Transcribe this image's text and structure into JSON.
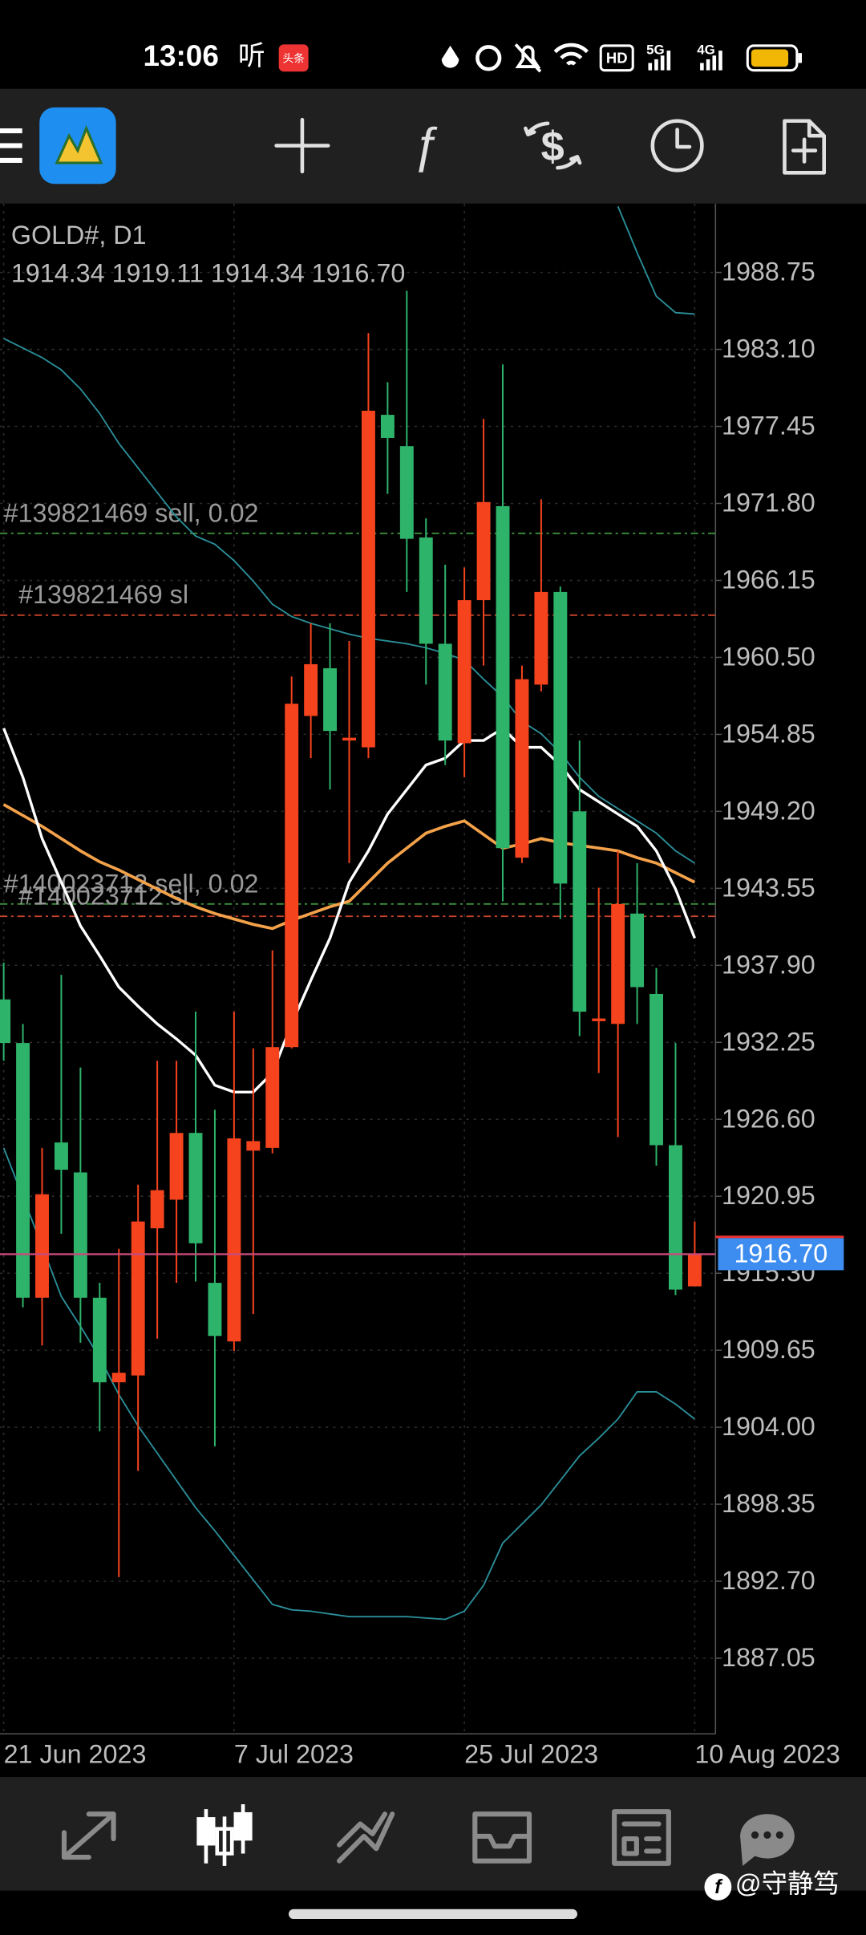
{
  "status_bar": {
    "time": "13:06",
    "listen": "听",
    "news": "头条",
    "hd": "HD",
    "net1": "5G",
    "net2": "4G"
  },
  "chart_data": {
    "type": "candlestick",
    "symbol": "GOLD#, D1",
    "ohlc_text": "1914.34 1919.11 1914.34 1916.70",
    "categories": [
      "21 Jun 2023",
      null,
      null,
      null,
      null,
      null,
      null,
      null,
      null,
      null,
      null,
      null,
      "7 Jul 2023",
      null,
      null,
      null,
      null,
      null,
      null,
      null,
      null,
      null,
      null,
      null,
      "25 Jul 2023",
      null,
      null,
      null,
      null,
      null,
      null,
      null,
      null,
      null,
      null,
      null,
      "10 Aug 2023"
    ],
    "open": [
      1935.4,
      1932.2,
      1913.5,
      1924.9,
      1922.7,
      1913.5,
      1907.3,
      1907.8,
      1918.6,
      1920.7,
      1925.6,
      1914.6,
      1910.3,
      1924.3,
      1924.5,
      1931.9,
      1956.2,
      1959.7,
      1954.4,
      1953.9,
      1978.3,
      1976.0,
      1969.3,
      1961.5,
      1954.2,
      1964.7,
      1971.6,
      1945.8,
      1958.5,
      1965.3,
      1949.2,
      1933.8,
      1933.6,
      1941.7,
      1935.8,
      1924.7,
      1914.34
    ],
    "high": [
      1938.1,
      1933.6,
      1924.5,
      1937.2,
      1930.4,
      1914.6,
      1917.1,
      1921.8,
      1930.9,
      1930.9,
      1934.5,
      1927.3,
      1934.5,
      1931.8,
      1939.0,
      1959.1,
      1963.0,
      1963.0,
      1961.7,
      1984.3,
      1980.7,
      1987.4,
      1970.7,
      1967.3,
      1967.1,
      1978.0,
      1982.0,
      1959.9,
      1972.1,
      1965.7,
      1954.4,
      1943.6,
      1946.3,
      1945.4,
      1937.7,
      1932.2,
      1919.11
    ],
    "low": [
      1930.9,
      1912.8,
      1910.0,
      1918.2,
      1910.2,
      1903.7,
      1893.0,
      1900.8,
      1910.5,
      1914.6,
      1914.7,
      1902.6,
      1909.6,
      1912.3,
      1924.1,
      1931.8,
      1953.1,
      1950.8,
      1945.4,
      1953.1,
      1972.5,
      1965.3,
      1958.5,
      1952.6,
      1951.7,
      1959.9,
      1942.6,
      1945.4,
      1958.0,
      1941.3,
      1932.7,
      1930.0,
      1925.3,
      1933.6,
      1923.2,
      1913.7,
      1914.34
    ],
    "close": [
      1932.2,
      1913.5,
      1921.1,
      1922.9,
      1913.5,
      1907.3,
      1908.0,
      1919.1,
      1921.4,
      1925.6,
      1917.5,
      1910.7,
      1925.2,
      1925.0,
      1931.9,
      1957.1,
      1960.0,
      1955.1,
      1954.6,
      1978.6,
      1976.6,
      1969.2,
      1961.5,
      1954.4,
      1964.7,
      1971.9,
      1946.5,
      1958.9,
      1965.3,
      1943.9,
      1934.5,
      1934.0,
      1942.4,
      1936.3,
      1924.7,
      1914.1,
      1916.7
    ],
    "up_color": "#f5431d",
    "down_color": "#2eb36b",
    "ylim": [
      1881.5,
      1993.8
    ],
    "yticks": [
      1988.75,
      {
        "value": 1983.1,
        "label": "1983.10"
      },
      1977.45,
      {
        "value": 1971.8,
        "label": "1971.80"
      },
      1966.15,
      {
        "value": 1960.5,
        "label": "1960.50"
      },
      1954.85,
      {
        "value": 1949.2,
        "label": "1949.20"
      },
      1943.55,
      {
        "value": 1937.9,
        "label": "1937.90"
      },
      1932.25,
      {
        "value": 1926.6,
        "label": "1926.60"
      },
      1920.95,
      {
        "value": 1915.3,
        "label": "1915.30"
      },
      1909.65,
      {
        "value": 1904.0,
        "label": "1904.00"
      },
      1898.35,
      {
        "value": 1892.7,
        "label": "1892.70"
      },
      1887.05
    ],
    "grid": true,
    "overlays": [
      {
        "color": "#2b8f9a",
        "width": 1.2,
        "values": [
          1924.5,
          1920.9,
          1917.3,
          1913.6,
          1911.4,
          1909.1,
          1906.4,
          1904.1,
          1902.1,
          1900.1,
          1898.1,
          1896.4,
          1894.6,
          1892.8,
          1891.0,
          1890.6,
          1890.5,
          1890.3,
          1890.1,
          1890.1,
          1890.1,
          1890.1,
          1890.0,
          1889.9,
          1890.5,
          1892.4,
          1895.5,
          1896.9,
          1898.3,
          1900.1,
          1901.9,
          1903.2,
          1904.6,
          1906.6,
          1906.6,
          1905.7,
          1904.6
        ]
      },
      {
        "color": "#2b8f9a",
        "width": 1.2,
        "values": [
          1983.9,
          1983.2,
          1982.5,
          1981.6,
          1980.2,
          1978.4,
          1976.2,
          1974.4,
          1972.6,
          1970.8,
          1969.4,
          1968.8,
          1967.6,
          1966.1,
          1964.4,
          1963.5,
          1963.0,
          1962.6,
          1962.2,
          1961.9,
          1961.7,
          1961.5,
          1961.2,
          1960.8,
          1960.3,
          1958.9,
          1957.6,
          1955.8,
          1954.9,
          1953.5,
          1951.7,
          1950.3,
          1949.4,
          1948.5,
          1947.6,
          1946.3,
          1945.4
        ]
      },
      {
        "color": "#2b8f9a",
        "width": 1.2,
        "values": [
          null,
          null,
          null,
          null,
          null,
          null,
          null,
          null,
          null,
          null,
          null,
          null,
          null,
          null,
          null,
          null,
          null,
          null,
          null,
          null,
          null,
          null,
          null,
          null,
          null,
          null,
          null,
          null,
          null,
          null,
          null,
          null,
          1993.6,
          1990.2,
          1987.0,
          1985.8,
          1985.7
        ]
      },
      {
        "color": "#f3a24a",
        "width": 2.4,
        "values": [
          1949.7,
          1948.9,
          1948.1,
          1947.2,
          1946.3,
          1945.5,
          1944.9,
          1944.2,
          1943.5,
          1942.8,
          1942.2,
          1941.7,
          1941.3,
          1940.9,
          1940.6,
          1941.2,
          1941.7,
          1942.2,
          1942.6,
          1944.0,
          1945.4,
          1946.5,
          1947.6,
          1948.1,
          1948.5,
          1947.5,
          1946.5,
          1946.8,
          1947.2,
          1946.9,
          1946.7,
          1946.5,
          1946.3,
          1945.8,
          1945.4,
          1944.7,
          1944.0
        ]
      },
      {
        "color": "#ffffff",
        "width": 2.2,
        "values": [
          1955.3,
          1951.7,
          1947.2,
          1944.0,
          1940.8,
          1938.6,
          1936.3,
          1934.9,
          1933.6,
          1932.5,
          1931.3,
          1929.1,
          1928.6,
          1928.6,
          1930.0,
          1933.6,
          1936.8,
          1939.9,
          1944.0,
          1946.3,
          1949.0,
          1950.8,
          1952.6,
          1953.1,
          1954.4,
          1954.4,
          1955.3,
          1953.9,
          1953.9,
          1952.6,
          1950.8,
          1949.9,
          1949.0,
          1948.1,
          1946.3,
          1943.5,
          1939.9
        ]
      }
    ],
    "orders": [
      {
        "label": "#139821469 sell, 0.02",
        "value": 1969.6,
        "color": "#3c8f3c"
      },
      {
        "label": "#139821469 sl",
        "value": 1963.6,
        "color": "#c8432b"
      },
      {
        "label": "#140023712 sell, 0.02",
        "value": 1942.4,
        "color": "#3c8f3c"
      },
      {
        "label": "#140023712 sl",
        "value": 1941.5,
        "color": "#c8432b"
      }
    ],
    "current_price": {
      "value": 1916.7,
      "label": "1916.70"
    },
    "current_color": "#3d8cf0"
  },
  "watermark": "@守静笃"
}
